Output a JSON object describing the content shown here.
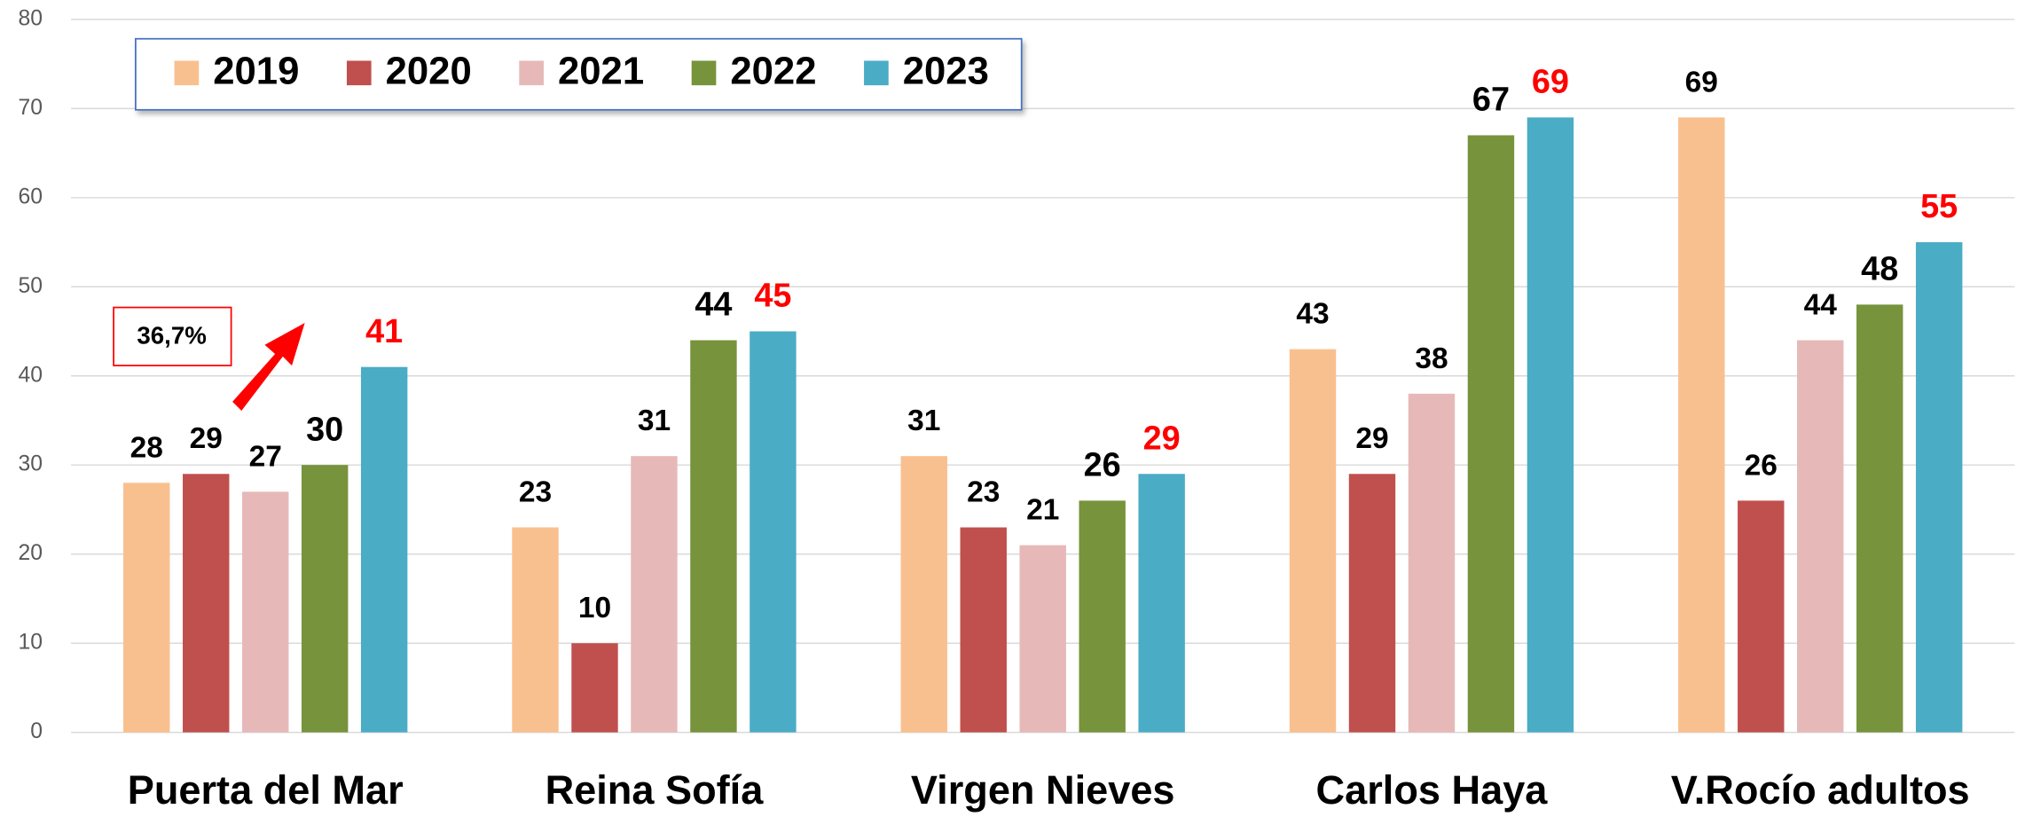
{
  "chart_data": {
    "type": "bar",
    "categories": [
      "Puerta del Mar",
      "Reina Sofía",
      "Virgen Nieves",
      "Carlos Haya",
      "V.Rocío adultos"
    ],
    "series": [
      {
        "name": "2019",
        "color": "#f9c08f",
        "label_color": "#000000",
        "values": [
          28,
          23,
          31,
          43,
          69
        ]
      },
      {
        "name": "2020",
        "color": "#c0504d",
        "label_color": "#000000",
        "values": [
          29,
          10,
          23,
          29,
          26
        ]
      },
      {
        "name": "2021",
        "color": "#e6b9b8",
        "label_color": "#000000",
        "values": [
          27,
          31,
          21,
          38,
          44
        ]
      },
      {
        "name": "2022",
        "color": "#77933c",
        "label_color": "#000000",
        "values": [
          30,
          44,
          26,
          67,
          48
        ]
      },
      {
        "name": "2023",
        "color": "#4bacc6",
        "label_color": "#ff0000",
        "values": [
          41,
          45,
          29,
          69,
          55
        ]
      }
    ],
    "ylim": [
      0,
      80
    ],
    "yticks": [
      0,
      10,
      20,
      30,
      40,
      50,
      60,
      70,
      80
    ],
    "grid": true,
    "legend": "top-left",
    "annotation": "36,7%"
  }
}
